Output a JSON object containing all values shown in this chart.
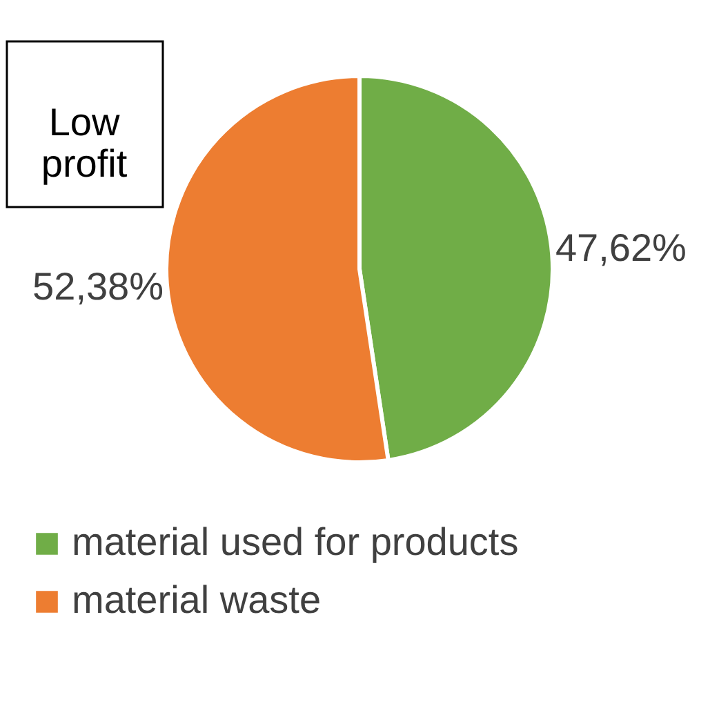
{
  "chart_data": {
    "type": "pie",
    "categories": [
      "material used for products",
      "material waste"
    ],
    "values": [
      47.62,
      52.38
    ],
    "colors": [
      "#70ad47",
      "#ed7d31"
    ],
    "value_labels": [
      "47,62%",
      "52,38%"
    ],
    "annotations": [
      "Low\nprofit"
    ],
    "legend": "bottom"
  }
}
